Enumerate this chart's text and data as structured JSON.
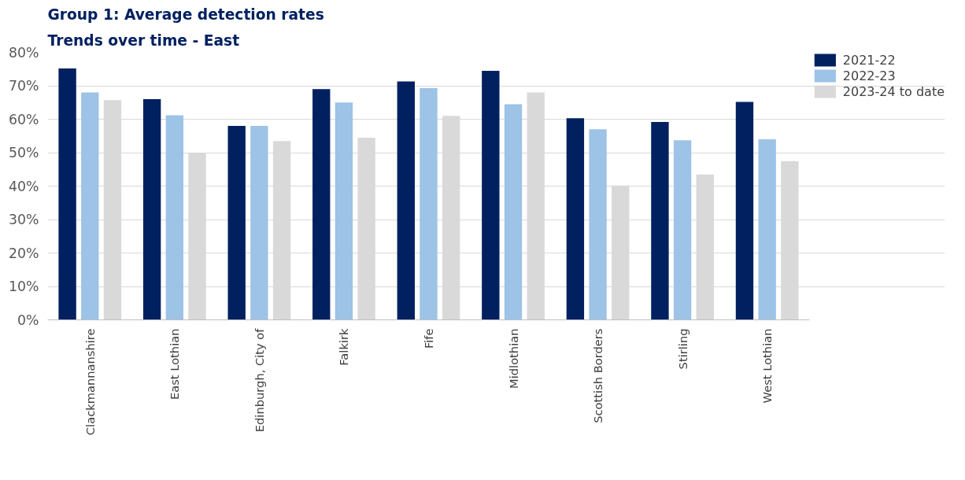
{
  "chart_data": {
    "type": "bar",
    "title": "Group 1: Average detection rates",
    "subtitle": "Trends over time - East",
    "categories": [
      "Clackmannanshire",
      "East Lothian",
      "Edinburgh, City of",
      "Falkirk",
      "Fife",
      "Midlothian",
      "Scottish Borders",
      "Stirling",
      "West Lothian"
    ],
    "series": [
      {
        "name": "2021-22",
        "color": "#002060",
        "values": [
          75.2,
          66,
          58,
          69,
          71.3,
          74.5,
          60.3,
          59.2,
          65.2
        ]
      },
      {
        "name": "2022-23",
        "color": "#9dc3e6",
        "values": [
          68,
          61.2,
          58,
          65,
          69.3,
          64.5,
          57,
          53.7,
          54
        ]
      },
      {
        "name": "2023-24 to date",
        "color": "#d9d9d9",
        "values": [
          65.7,
          50,
          53.5,
          54.5,
          61,
          68,
          40.2,
          43.5,
          47.5
        ]
      }
    ],
    "ylim": [
      0,
      80
    ],
    "yticks": [
      {
        "value": 0,
        "label": "0%"
      },
      {
        "value": 10,
        "label": "10%"
      },
      {
        "value": 20,
        "label": "20%"
      },
      {
        "value": 30,
        "label": "30%"
      },
      {
        "value": 40,
        "label": "40%"
      },
      {
        "value": 50,
        "label": "50%"
      },
      {
        "value": 60,
        "label": "60%"
      },
      {
        "value": 70,
        "label": "70%"
      },
      {
        "value": 80,
        "label": "80%"
      }
    ],
    "grid": "y",
    "legend": "top right"
  }
}
